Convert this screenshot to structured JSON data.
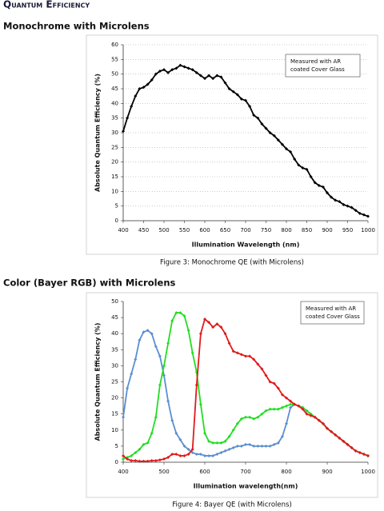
{
  "title": "Quantum Efficiency",
  "chart_data": [
    {
      "type": "line",
      "heading": "Monochrome with Microlens",
      "caption": "Figure 3: Monochrome QE (with Microlens)",
      "xlabel": "Illumination Wavelength (nm)",
      "ylabel": "Absolute Quantum Efficiency (%)",
      "annotation": [
        "Measured with AR",
        "coated Cover Glass"
      ],
      "x": [
        400,
        410,
        420,
        430,
        440,
        450,
        460,
        470,
        480,
        490,
        500,
        510,
        520,
        530,
        540,
        550,
        560,
        570,
        580,
        590,
        600,
        610,
        620,
        630,
        640,
        650,
        660,
        670,
        680,
        690,
        700,
        710,
        720,
        730,
        740,
        750,
        760,
        770,
        780,
        790,
        800,
        810,
        820,
        830,
        840,
        850,
        860,
        870,
        880,
        890,
        900,
        910,
        920,
        930,
        940,
        950,
        960,
        970,
        980,
        990,
        1000
      ],
      "series": [
        {
          "color": "#000000",
          "values": [
            30.5,
            35,
            39,
            42.5,
            45,
            45.5,
            46.5,
            48,
            50,
            51,
            51.5,
            50.5,
            51.5,
            52,
            53,
            52.5,
            52,
            51.5,
            50.5,
            49.5,
            48.5,
            49.5,
            48.5,
            49.5,
            49,
            47,
            45,
            44,
            43,
            41.5,
            41,
            39,
            36,
            35,
            33,
            31.5,
            30,
            29,
            27.5,
            26,
            24.5,
            23.5,
            21,
            19,
            18,
            17.5,
            15,
            13,
            12,
            11.5,
            9.5,
            8,
            7,
            6.5,
            5.5,
            5,
            4.5,
            3.5,
            2.5,
            2,
            1.5
          ]
        }
      ],
      "xlim": [
        400,
        1000
      ],
      "xticks": [
        400,
        450,
        500,
        550,
        600,
        650,
        700,
        750,
        800,
        850,
        900,
        950,
        1000
      ],
      "ylim": [
        0,
        60
      ],
      "yticks": [
        0,
        5,
        10,
        15,
        20,
        25,
        30,
        35,
        40,
        45,
        50,
        55,
        60
      ],
      "grid": true
    },
    {
      "type": "line",
      "heading": "Color (Bayer RGB) with Microlens",
      "caption": "Figure 4: Bayer QE (with Microlens)",
      "xlabel": "Illumination wavelength(nm)",
      "ylabel": "Absolute Quantum Efficiency (%)",
      "annotation": [
        "Measured with AR",
        "coated Cover Glass"
      ],
      "x": [
        400,
        410,
        420,
        430,
        440,
        450,
        460,
        470,
        480,
        490,
        500,
        510,
        520,
        530,
        540,
        550,
        560,
        570,
        580,
        590,
        600,
        610,
        620,
        630,
        640,
        650,
        660,
        670,
        680,
        690,
        700,
        710,
        720,
        730,
        740,
        750,
        760,
        770,
        780,
        790,
        800,
        810,
        820,
        830,
        840,
        850,
        860,
        870,
        880,
        890,
        900,
        910,
        920,
        930,
        940,
        950,
        960,
        970,
        980,
        990,
        1000
      ],
      "series": [
        {
          "color": "#5b8fd0",
          "values": [
            14,
            23,
            27.5,
            32,
            38,
            40.5,
            41,
            40,
            36,
            33,
            27,
            19,
            13,
            9,
            7,
            5,
            4,
            3,
            2.5,
            2.5,
            2,
            2,
            2,
            2.5,
            3,
            3.5,
            4,
            4.5,
            5,
            5,
            5.5,
            5.5,
            5,
            5,
            5,
            5,
            5,
            5.5,
            6,
            8,
            12,
            17,
            18,
            17.5,
            17,
            16,
            15,
            14,
            13,
            12,
            10.5,
            9.5,
            8.5,
            7.5,
            6.5,
            5.5,
            4.5,
            3.5,
            3,
            2.5,
            2
          ]
        },
        {
          "color": "#22dd22",
          "values": [
            1,
            1.5,
            2,
            3,
            4,
            5.5,
            6,
            9,
            14,
            24,
            30,
            37,
            44,
            46.5,
            46.5,
            45.5,
            41,
            34,
            28,
            18,
            9,
            6.5,
            6,
            6,
            6,
            6.5,
            8,
            10,
            12,
            13.5,
            14,
            14,
            13.5,
            14,
            15,
            16,
            16.5,
            16.5,
            16.5,
            17,
            17.5,
            18,
            18,
            17.5,
            17,
            16,
            15,
            14,
            13,
            12,
            10.5,
            9.5,
            8.5,
            7.5,
            6.5,
            5.5,
            4.5,
            3.5,
            3,
            2.5,
            2
          ]
        },
        {
          "color": "#e01b1b",
          "values": [
            2,
            1,
            0.5,
            0.5,
            0.3,
            0.3,
            0.3,
            0.5,
            0.5,
            0.7,
            1,
            1.5,
            2.5,
            2.5,
            2,
            2,
            2.5,
            4,
            24,
            40,
            44.5,
            43.5,
            42,
            43,
            42,
            40,
            37,
            34.5,
            34,
            33.5,
            33,
            33,
            32,
            30.5,
            29,
            27,
            25,
            24.5,
            23,
            21,
            20,
            19,
            18,
            17.5,
            16.5,
            15,
            14.5,
            14,
            13,
            12,
            10.5,
            9.5,
            8.5,
            7.5,
            6.5,
            5.5,
            4.5,
            3.5,
            3,
            2.5,
            2
          ]
        }
      ],
      "xlim": [
        400,
        1000
      ],
      "xticks": [
        400,
        500,
        600,
        700,
        800,
        900,
        1000
      ],
      "ylim": [
        0,
        50
      ],
      "yticks": [
        0,
        5,
        10,
        15,
        20,
        25,
        30,
        35,
        40,
        45,
        50
      ],
      "grid": false
    }
  ]
}
